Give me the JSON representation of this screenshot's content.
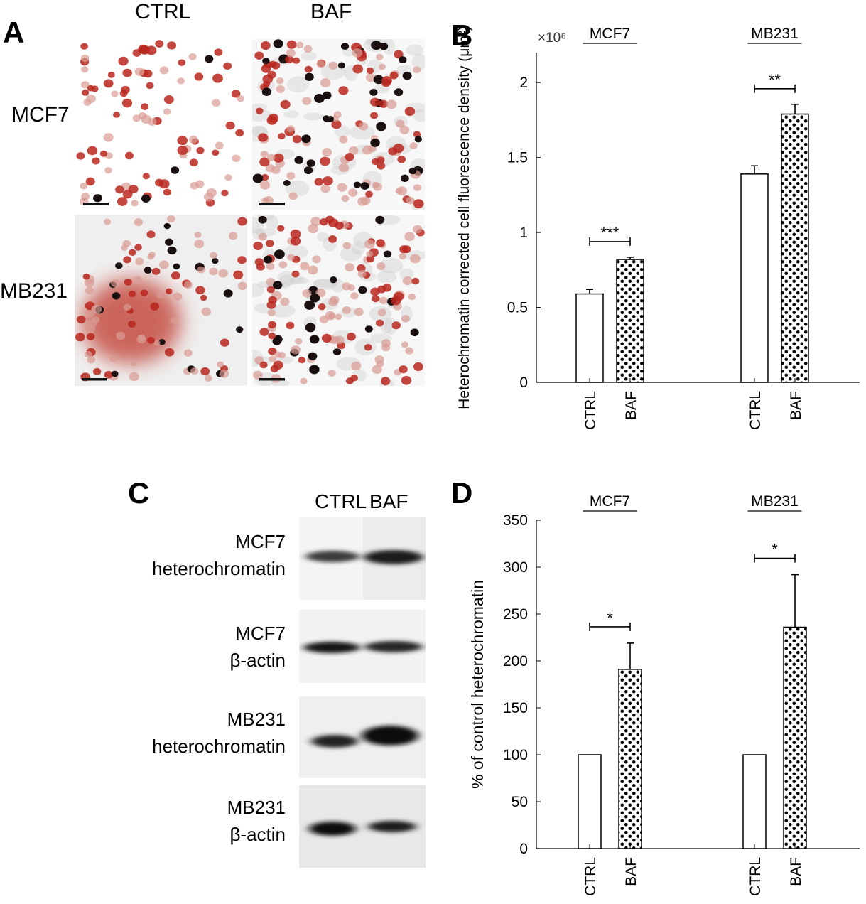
{
  "panels": {
    "a": {
      "letter": "A",
      "columns": [
        "CTRL",
        "BAF"
      ],
      "rows": [
        "MCF7",
        "MB231"
      ]
    },
    "c": {
      "letter": "C",
      "columns": [
        "CTRL",
        "BAF"
      ],
      "blots": [
        {
          "line1": "MCF7",
          "line2": "heterochromatin"
        },
        {
          "line1": "MCF7",
          "line2": "β-actin"
        },
        {
          "line1": "MB231",
          "line2": "heterochromatin"
        },
        {
          "line1": "MB231",
          "line2": "β-actin"
        }
      ]
    },
    "b": {
      "letter": "B"
    },
    "d": {
      "letter": "D"
    }
  },
  "colors": {
    "stain": "#c0392b",
    "nucleus_dark": "#1a1010",
    "bar_ctrl_fill": "#ffffff",
    "bar_baf_fill": "#ffffff",
    "bar_baf_dots": "#000000"
  },
  "chart_data": [
    {
      "type": "bar",
      "panel": "B",
      "title": "",
      "ylabel": "Heterochromatin corrected cell fluorescence density (μm²)",
      "y_multiplier": "×10⁶",
      "ylim": [
        0,
        2.2
      ],
      "yticks": [
        0,
        0.5,
        1,
        1.5,
        2
      ],
      "ytick_labels": [
        "0",
        "0.5",
        "1",
        "1.5",
        "2"
      ],
      "groups": [
        {
          "name": "MCF7",
          "categories": [
            "CTRL",
            "BAF"
          ],
          "values": [
            0.59,
            0.82
          ],
          "errors": [
            0.03,
            0.015
          ],
          "significance": "***"
        },
        {
          "name": "MB231",
          "categories": [
            "CTRL",
            "BAF"
          ],
          "values": [
            1.39,
            1.79
          ],
          "errors": [
            0.055,
            0.065
          ],
          "significance": "**"
        }
      ]
    },
    {
      "type": "bar",
      "panel": "D",
      "title": "",
      "ylabel": "% of control heterochromatin",
      "ylim": [
        0,
        350
      ],
      "yticks": [
        0,
        50,
        100,
        150,
        200,
        250,
        300,
        350
      ],
      "ytick_labels": [
        "0",
        "50",
        "100",
        "150",
        "200",
        "250",
        "300",
        "350"
      ],
      "groups": [
        {
          "name": "MCF7",
          "categories": [
            "CTRL",
            "BAF"
          ],
          "values": [
            100,
            191
          ],
          "errors": [
            0,
            28
          ],
          "significance": "*"
        },
        {
          "name": "MB231",
          "categories": [
            "CTRL",
            "BAF"
          ],
          "values": [
            100,
            236
          ],
          "errors": [
            0,
            56
          ],
          "significance": "*"
        }
      ]
    }
  ]
}
